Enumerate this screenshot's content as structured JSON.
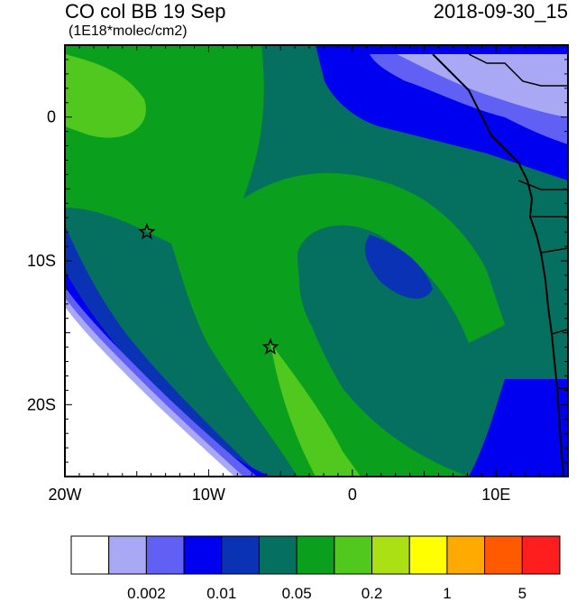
{
  "header": {
    "title_left": "CO col BB 19 Sep",
    "subtitle": "(1E18*molec/cm2)",
    "title_right": "2018-09-30_15"
  },
  "map": {
    "extent": {
      "lon": [
        -20,
        15
      ],
      "lat": [
        -25,
        5
      ]
    },
    "x_ticks": [
      {
        "lon": -20,
        "label": "20W"
      },
      {
        "lon": -10,
        "label": "10W"
      },
      {
        "lon": 0,
        "label": "0"
      },
      {
        "lon": 10,
        "label": "10E"
      }
    ],
    "y_ticks": [
      {
        "lat": 0,
        "label": "0"
      },
      {
        "lat": -10,
        "label": "10S"
      },
      {
        "lat": -20,
        "label": "20S"
      }
    ],
    "stars": [
      {
        "lon": -14.3,
        "lat": -8.0
      },
      {
        "lon": -5.7,
        "lat": -16.0
      }
    ]
  },
  "colorbar": {
    "colors": [
      "#ffffff",
      "#a8a8f5",
      "#6060f5",
      "#0000f0",
      "#0a32b4",
      "#057060",
      "#0aa01e",
      "#50c81e",
      "#aae014",
      "#ffff00",
      "#ffaa00",
      "#ff5a00",
      "#ff1e1e"
    ],
    "labels": [
      {
        "after_box": 2,
        "text": "0.002"
      },
      {
        "after_box": 4,
        "text": "0.01"
      },
      {
        "after_box": 6,
        "text": "0.05"
      },
      {
        "after_box": 8,
        "text": "0.2"
      },
      {
        "after_box": 10,
        "text": "1"
      },
      {
        "after_box": 12,
        "text": "5"
      }
    ]
  },
  "fields": {
    "background": "#057060",
    "white": "#ffffff",
    "pale": "#a8a8f5",
    "mid": "#6060f5",
    "blue": "#0000f0",
    "navy": "#0a32b4",
    "green": "#0aa01e",
    "lightgreen": "#50c81e"
  }
}
